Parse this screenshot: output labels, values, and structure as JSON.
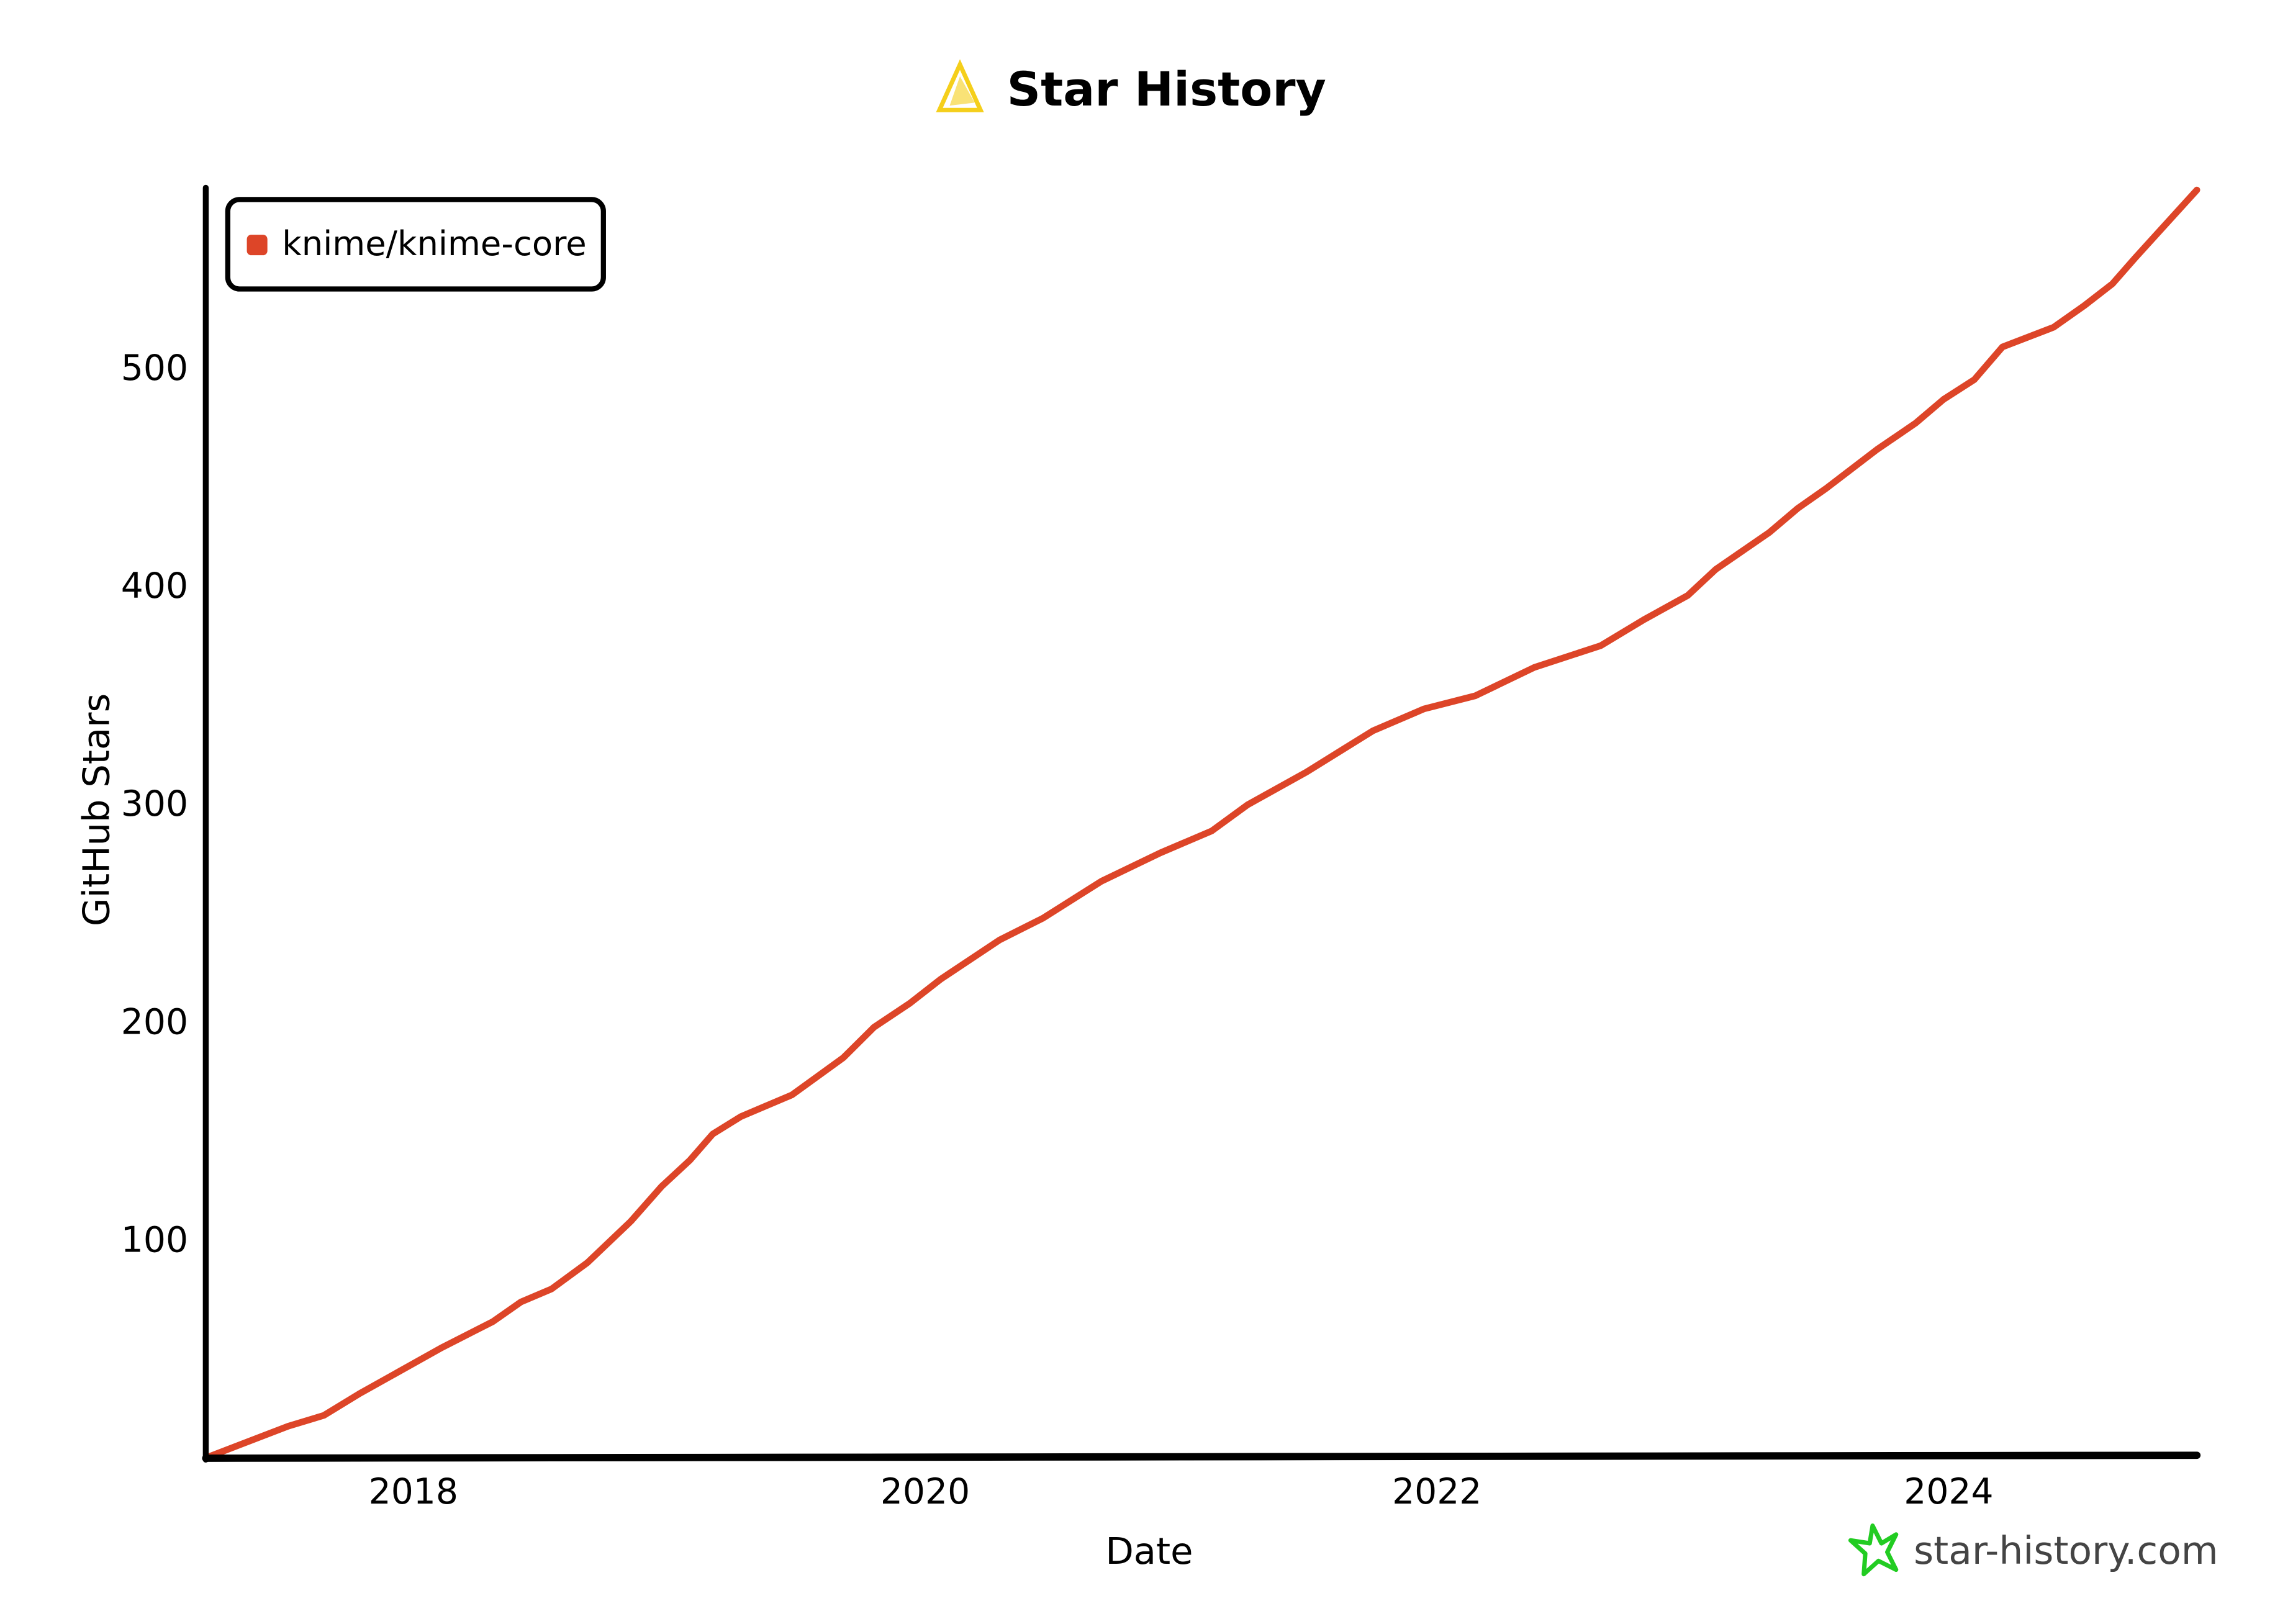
{
  "colors": {
    "series": "#dd4528",
    "axis": "#000000",
    "logo": "#f5cf1b",
    "brand_icon": "#22cc22",
    "brand_text": "#444444"
  },
  "chart_data": {
    "type": "line",
    "title": "Star History",
    "xlabel": "Date",
    "ylabel": "GitHub Stars",
    "xlim": [
      2017.2,
      2024.97
    ],
    "ylim": [
      0,
      582
    ],
    "x_ticks": [
      2018,
      2020,
      2022,
      2024
    ],
    "x_tick_labels": [
      "2018",
      "2020",
      "2022",
      "2024"
    ],
    "y_ticks": [
      100,
      200,
      300,
      400,
      500
    ],
    "y_tick_labels": [
      "100",
      "200",
      "300",
      "400",
      "500"
    ],
    "grid": false,
    "legend_position": "top-left",
    "series": [
      {
        "name": "knime/knime-core",
        "x": [
          2017.2,
          2017.51,
          2017.65,
          2017.79,
          2018.11,
          2018.31,
          2018.42,
          2018.54,
          2018.68,
          2018.85,
          2018.97,
          2019.08,
          2019.17,
          2019.28,
          2019.48,
          2019.68,
          2019.8,
          2019.94,
          2020.06,
          2020.29,
          2020.46,
          2020.69,
          2020.92,
          2021.12,
          2021.26,
          2021.49,
          2021.75,
          2021.95,
          2022.15,
          2022.38,
          2022.64,
          2022.81,
          2022.98,
          2023.09,
          2023.3,
          2023.41,
          2023.52,
          2023.72,
          2023.87,
          2023.98,
          2024.1,
          2024.21,
          2024.41,
          2024.53,
          2024.64,
          2024.73,
          2024.97
        ],
        "y": [
          0,
          14,
          19,
          29,
          50,
          62,
          71,
          77,
          89,
          108,
          124,
          136,
          148,
          156,
          166,
          183,
          197,
          208,
          219,
          237,
          247,
          264,
          277,
          287,
          299,
          314,
          333,
          343,
          349,
          362,
          372,
          384,
          395,
          407,
          424,
          435,
          444,
          462,
          474,
          485,
          494,
          509,
          518,
          528,
          538,
          550,
          581
        ]
      }
    ]
  },
  "watermark": "star-history.com"
}
